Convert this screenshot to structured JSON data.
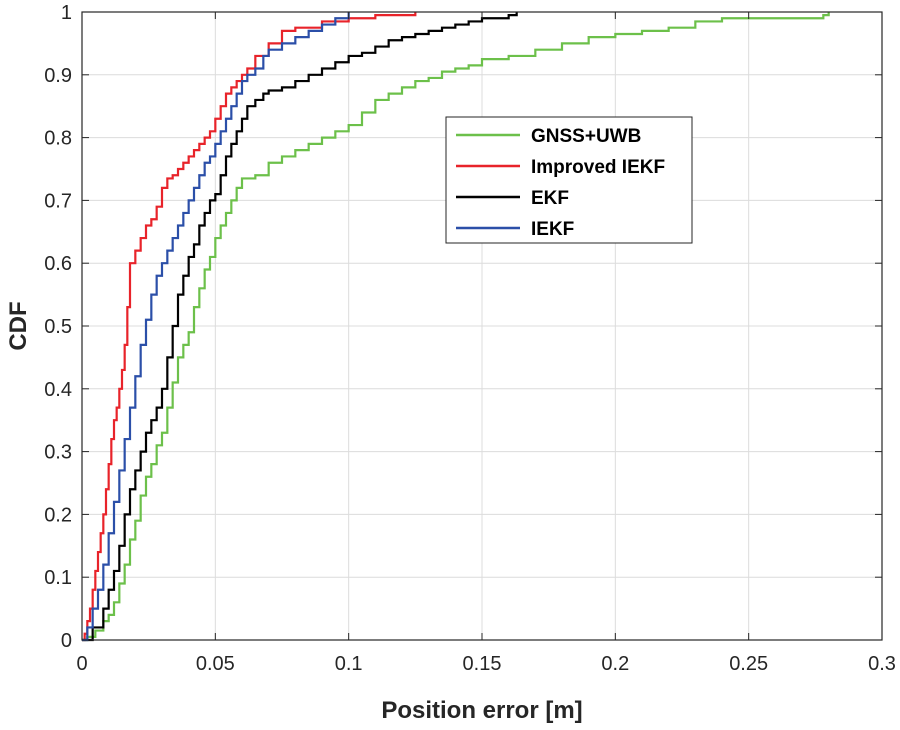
{
  "chart_data": {
    "type": "line",
    "title": "",
    "xlabel": "Position error [m]",
    "ylabel": "CDF",
    "xlim": [
      0,
      0.3
    ],
    "ylim": [
      0,
      1
    ],
    "grid": true,
    "legend_position": "upper-middle-right",
    "xticks": [
      0,
      0.05,
      0.1,
      0.15,
      0.2,
      0.25,
      0.3
    ],
    "xtick_labels": [
      "0",
      "0.05",
      "0.1",
      "0.15",
      "0.2",
      "0.25",
      "0.3"
    ],
    "yticks": [
      0,
      0.1,
      0.2,
      0.3,
      0.4,
      0.5,
      0.6,
      0.7,
      0.8,
      0.9,
      1
    ],
    "ytick_labels": [
      "0",
      "0.1",
      "0.2",
      "0.3",
      "0.4",
      "0.5",
      "0.6",
      "0.7",
      "0.8",
      "0.9",
      "1"
    ],
    "series": [
      {
        "name": "GNSS+UWB",
        "color": "#6cc04a",
        "x": [
          0,
          0.002,
          0.005,
          0.008,
          0.01,
          0.012,
          0.014,
          0.016,
          0.018,
          0.02,
          0.022,
          0.024,
          0.026,
          0.028,
          0.03,
          0.032,
          0.034,
          0.036,
          0.038,
          0.04,
          0.042,
          0.044,
          0.046,
          0.048,
          0.05,
          0.052,
          0.054,
          0.056,
          0.058,
          0.06,
          0.065,
          0.07,
          0.075,
          0.08,
          0.085,
          0.09,
          0.095,
          0.1,
          0.105,
          0.11,
          0.115,
          0.12,
          0.125,
          0.13,
          0.135,
          0.14,
          0.145,
          0.15,
          0.155,
          0.16,
          0.17,
          0.18,
          0.19,
          0.2,
          0.21,
          0.22,
          0.23,
          0.24,
          0.25,
          0.26,
          0.27,
          0.278,
          0.28
        ],
        "y": [
          0,
          0.005,
          0.015,
          0.03,
          0.04,
          0.06,
          0.09,
          0.12,
          0.16,
          0.19,
          0.23,
          0.26,
          0.28,
          0.31,
          0.33,
          0.37,
          0.41,
          0.45,
          0.47,
          0.49,
          0.53,
          0.56,
          0.59,
          0.61,
          0.64,
          0.66,
          0.68,
          0.7,
          0.72,
          0.735,
          0.74,
          0.76,
          0.77,
          0.78,
          0.79,
          0.8,
          0.81,
          0.82,
          0.84,
          0.86,
          0.87,
          0.88,
          0.89,
          0.895,
          0.905,
          0.91,
          0.915,
          0.925,
          0.925,
          0.93,
          0.94,
          0.95,
          0.96,
          0.965,
          0.97,
          0.975,
          0.985,
          0.99,
          0.99,
          0.99,
          0.99,
          0.995,
          1.0
        ]
      },
      {
        "name": "Improved IEKF",
        "color": "#e8232a",
        "x": [
          0,
          0.001,
          0.002,
          0.003,
          0.004,
          0.005,
          0.006,
          0.007,
          0.008,
          0.009,
          0.01,
          0.011,
          0.012,
          0.013,
          0.014,
          0.015,
          0.016,
          0.017,
          0.018,
          0.02,
          0.022,
          0.024,
          0.026,
          0.028,
          0.03,
          0.032,
          0.034,
          0.036,
          0.038,
          0.04,
          0.042,
          0.044,
          0.046,
          0.048,
          0.05,
          0.052,
          0.054,
          0.056,
          0.058,
          0.06,
          0.062,
          0.065,
          0.07,
          0.075,
          0.08,
          0.09,
          0.1,
          0.11,
          0.12,
          0.125
        ],
        "y": [
          0,
          0.01,
          0.03,
          0.05,
          0.08,
          0.11,
          0.14,
          0.17,
          0.2,
          0.24,
          0.28,
          0.32,
          0.35,
          0.37,
          0.4,
          0.43,
          0.47,
          0.53,
          0.6,
          0.62,
          0.64,
          0.66,
          0.67,
          0.69,
          0.72,
          0.735,
          0.74,
          0.75,
          0.76,
          0.77,
          0.78,
          0.79,
          0.8,
          0.81,
          0.83,
          0.85,
          0.87,
          0.88,
          0.89,
          0.9,
          0.91,
          0.93,
          0.95,
          0.97,
          0.975,
          0.985,
          0.99,
          0.995,
          0.995,
          1.0
        ]
      },
      {
        "name": "EKF",
        "color": "#000000",
        "x": [
          0,
          0.004,
          0.008,
          0.01,
          0.012,
          0.014,
          0.016,
          0.018,
          0.02,
          0.022,
          0.024,
          0.026,
          0.028,
          0.03,
          0.032,
          0.034,
          0.036,
          0.038,
          0.04,
          0.042,
          0.044,
          0.046,
          0.048,
          0.05,
          0.052,
          0.054,
          0.056,
          0.058,
          0.06,
          0.062,
          0.065,
          0.068,
          0.07,
          0.075,
          0.08,
          0.085,
          0.09,
          0.095,
          0.1,
          0.105,
          0.11,
          0.115,
          0.12,
          0.125,
          0.13,
          0.135,
          0.14,
          0.145,
          0.15,
          0.155,
          0.16,
          0.163
        ],
        "y": [
          0,
          0.02,
          0.05,
          0.08,
          0.11,
          0.15,
          0.2,
          0.24,
          0.27,
          0.3,
          0.33,
          0.35,
          0.37,
          0.4,
          0.45,
          0.5,
          0.55,
          0.58,
          0.61,
          0.63,
          0.66,
          0.68,
          0.7,
          0.71,
          0.74,
          0.77,
          0.79,
          0.81,
          0.83,
          0.85,
          0.86,
          0.87,
          0.875,
          0.88,
          0.89,
          0.9,
          0.91,
          0.92,
          0.93,
          0.935,
          0.945,
          0.955,
          0.96,
          0.965,
          0.97,
          0.975,
          0.98,
          0.985,
          0.99,
          0.99,
          0.995,
          1.0
        ]
      },
      {
        "name": "IEKF",
        "color": "#2b4fa8",
        "x": [
          0,
          0.002,
          0.004,
          0.006,
          0.008,
          0.01,
          0.012,
          0.014,
          0.016,
          0.018,
          0.02,
          0.022,
          0.024,
          0.026,
          0.028,
          0.03,
          0.032,
          0.034,
          0.036,
          0.038,
          0.04,
          0.042,
          0.044,
          0.046,
          0.048,
          0.05,
          0.052,
          0.054,
          0.056,
          0.058,
          0.06,
          0.062,
          0.065,
          0.068,
          0.07,
          0.075,
          0.08,
          0.085,
          0.09,
          0.095,
          0.1
        ],
        "y": [
          0,
          0.02,
          0.05,
          0.08,
          0.12,
          0.17,
          0.22,
          0.27,
          0.32,
          0.37,
          0.42,
          0.47,
          0.51,
          0.55,
          0.58,
          0.6,
          0.62,
          0.64,
          0.66,
          0.68,
          0.7,
          0.72,
          0.74,
          0.76,
          0.77,
          0.79,
          0.81,
          0.83,
          0.85,
          0.87,
          0.89,
          0.9,
          0.91,
          0.93,
          0.94,
          0.95,
          0.96,
          0.97,
          0.98,
          0.99,
          1.0
        ]
      }
    ]
  }
}
